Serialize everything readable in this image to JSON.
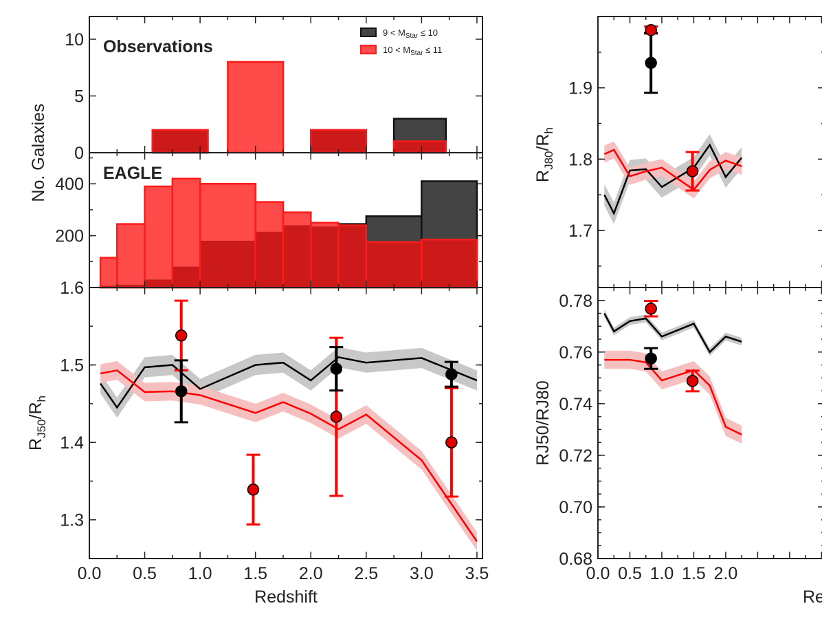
{
  "colors": {
    "black": "#000000",
    "red": "#ff0000",
    "obs_black_fill": "#444444",
    "obs_red_fill": "#ff4a4a",
    "eagle_red_dark": "#cc1a1a",
    "band_black": "#c8c8c8",
    "band_red": "#f7c0c0"
  },
  "chart_data": [
    {
      "type": "bar",
      "panel": "left-top",
      "title": "Observations",
      "ylabel": "No. Galaxies",
      "ylim": [
        0,
        12
      ],
      "yticks": [
        "0",
        "5",
        "10"
      ],
      "legend": {
        "position": "top-right",
        "entries": [
          {
            "series": "9 < M_Star ≤ 10",
            "prefix": "9 < M",
            "sub": "Star",
            "suffix": " ≤ 10"
          },
          {
            "series": "10 < M_Star ≤ 11",
            "prefix": "10 < M",
            "sub": "Star",
            "suffix": " ≤ 11"
          }
        ]
      },
      "series": [
        {
          "name": "9 < M_Star ≤ 10",
          "bins": [
            [
              0.57,
              1.07,
              2
            ],
            [
              2.0,
              2.5,
              2
            ],
            [
              2.75,
              3.22,
              3
            ]
          ]
        },
        {
          "name": "10 < M_Star ≤ 11",
          "bins": [
            [
              0.57,
              1.07,
              2
            ],
            [
              1.25,
              1.75,
              8
            ],
            [
              2.0,
              2.5,
              2
            ],
            [
              2.75,
              3.22,
              1
            ]
          ]
        }
      ]
    },
    {
      "type": "bar",
      "panel": "left-middle",
      "title": "EAGLE",
      "ylabel": "No. Galaxies",
      "ylim": [
        0,
        520
      ],
      "yticks": [
        "200",
        "400"
      ],
      "series": [
        {
          "name": "9 < M_Star ≤ 10",
          "bins": [
            [
              0.1,
              0.25,
              6
            ],
            [
              0.25,
              0.5,
              10
            ],
            [
              0.5,
              0.75,
              30
            ],
            [
              0.75,
              1.0,
              80
            ],
            [
              1.0,
              1.5,
              180
            ],
            [
              1.5,
              1.75,
              215
            ],
            [
              1.75,
              2.0,
              240
            ],
            [
              2.0,
              2.25,
              235
            ],
            [
              2.25,
              2.5,
              245
            ],
            [
              2.5,
              3.0,
              275
            ],
            [
              3.0,
              3.5,
              410
            ]
          ]
        },
        {
          "name": "10 < M_Star ≤ 11",
          "bins": [
            [
              0.1,
              0.25,
              115
            ],
            [
              0.25,
              0.5,
              245
            ],
            [
              0.5,
              0.75,
              390
            ],
            [
              0.75,
              1.0,
              420
            ],
            [
              1.0,
              1.5,
              400
            ],
            [
              1.5,
              1.75,
              330
            ],
            [
              1.75,
              2.0,
              290
            ],
            [
              2.0,
              2.25,
              250
            ],
            [
              2.25,
              2.5,
              240
            ],
            [
              2.5,
              3.0,
              175
            ],
            [
              3.0,
              3.5,
              185
            ]
          ]
        }
      ]
    },
    {
      "type": "line",
      "panel": "left-bottom",
      "xlabel": "Redshift",
      "ylabel": "R_J50/R_h",
      "ylabel_main": "R",
      "ylabel_sub": "J50",
      "ylabel_mid": "/R",
      "ylabel_sub2": "h",
      "xlim": [
        0,
        3.55
      ],
      "ylim": [
        1.25,
        1.6
      ],
      "xticks": [
        "0.0",
        "0.5",
        "1.0",
        "1.5",
        "2.0",
        "2.5",
        "3.0",
        "3.5"
      ],
      "yticks": [
        "1.3",
        "1.4",
        "1.5",
        "1.6"
      ],
      "series": [
        {
          "name": "EAGLE 9 < M_Star ≤ 10",
          "x": [
            0.1,
            0.25,
            0.5,
            0.75,
            1.0,
            1.5,
            1.75,
            2.0,
            2.25,
            2.5,
            3.0,
            3.5
          ],
          "y": [
            1.476,
            1.445,
            1.497,
            1.5,
            1.469,
            1.5,
            1.503,
            1.48,
            1.51,
            1.503,
            1.509,
            1.48
          ],
          "band": 0.013
        },
        {
          "name": "EAGLE 10 < M_Star ≤ 11",
          "x": [
            0.1,
            0.25,
            0.5,
            0.75,
            1.0,
            1.5,
            1.75,
            2.0,
            2.25,
            2.5,
            3.0,
            3.5
          ],
          "y": [
            1.489,
            1.493,
            1.465,
            1.466,
            1.461,
            1.438,
            1.452,
            1.437,
            1.417,
            1.436,
            1.377,
            1.272
          ],
          "band": 0.012
        },
        {
          "name": "Obs 9 < M_Star ≤ 10",
          "points": [
            {
              "x": 0.83,
              "y": 1.466,
              "err": 0.04
            },
            {
              "x": 2.23,
              "y": 1.495,
              "err": 0.028
            },
            {
              "x": 3.27,
              "y": 1.488,
              "err": 0.016
            }
          ]
        },
        {
          "name": "Obs 10 < M_Star ≤ 11",
          "points": [
            {
              "x": 0.83,
              "y": 1.538,
              "err": 0.045
            },
            {
              "x": 1.48,
              "y": 1.339,
              "err": 0.045
            },
            {
              "x": 2.23,
              "y": 1.433,
              "err": 0.102
            },
            {
              "x": 3.27,
              "y": 1.4,
              "err": 0.07
            }
          ]
        }
      ]
    },
    {
      "type": "line",
      "panel": "right-top",
      "ylabel": "R_J80/R_h",
      "ylabel_main": "R",
      "ylabel_sub": "J80",
      "ylabel_mid": "/R",
      "ylabel_sub2": "h",
      "xlim": [
        0,
        3.55
      ],
      "ylim": [
        1.62,
        2.0
      ],
      "yticks": [
        "1.7",
        "1.8",
        "1.9"
      ],
      "series": [
        {
          "name": "EAGLE 9 < M_Star ≤ 10",
          "x": [
            0.1,
            0.25,
            0.5,
            0.75,
            1.0,
            1.5,
            1.75,
            2.0,
            2.25
          ],
          "y": [
            1.75,
            1.724,
            1.784,
            1.786,
            1.761,
            1.788,
            1.82,
            1.775,
            1.802
          ],
          "band": 0.015
        },
        {
          "name": "EAGLE 10 < M_Star ≤ 11",
          "x": [
            0.1,
            0.25,
            0.5,
            0.75,
            1.0,
            1.5,
            1.75,
            2.0,
            2.25
          ],
          "y": [
            1.807,
            1.813,
            1.776,
            1.783,
            1.788,
            1.757,
            1.785,
            1.798,
            1.79
          ],
          "band": 0.012
        },
        {
          "name": "Obs 9 < M_Star ≤ 10",
          "points": [
            {
              "x": 0.83,
              "y": 1.935,
              "err": 0.042
            }
          ]
        },
        {
          "name": "Obs 10 < M_Star ≤ 11",
          "points": [
            {
              "x": 0.83,
              "y": 1.981,
              "err": 0.005
            },
            {
              "x": 1.48,
              "y": 1.783,
              "err": 0.027
            }
          ]
        }
      ]
    },
    {
      "type": "line",
      "panel": "right-bottom",
      "xlabel": "Redshift",
      "ylabel": "RJ50/RJ80",
      "xlim": [
        0,
        3.55
      ],
      "ylim": [
        0.68,
        0.785
      ],
      "xticks": [
        "0.0",
        "0.5",
        "1.0",
        "1.5",
        "2.0"
      ],
      "yticks": [
        "0.68",
        "0.70",
        "0.72",
        "0.74",
        "0.76",
        "0.78"
      ],
      "series": [
        {
          "name": "EAGLE 9 < M_Star ≤ 10",
          "x": [
            0.1,
            0.25,
            0.5,
            0.75,
            1.0,
            1.5,
            1.75,
            2.0,
            2.25
          ],
          "y": [
            0.775,
            0.768,
            0.772,
            0.773,
            0.766,
            0.771,
            0.76,
            0.766,
            0.764
          ],
          "band": 0.0015
        },
        {
          "name": "EAGLE 10 < M_Star ≤ 11",
          "x": [
            0.1,
            0.25,
            0.5,
            0.75,
            1.0,
            1.5,
            1.75,
            2.0,
            2.25
          ],
          "y": [
            0.757,
            0.757,
            0.757,
            0.756,
            0.749,
            0.753,
            0.747,
            0.731,
            0.728
          ],
          "band": 0.0035
        },
        {
          "name": "Obs 9 < M_Star ≤ 10",
          "points": [
            {
              "x": 0.83,
              "y": 0.7575,
              "err": 0.004
            }
          ]
        },
        {
          "name": "Obs 10 < M_Star ≤ 11",
          "points": [
            {
              "x": 0.83,
              "y": 0.7768,
              "err": 0.003
            },
            {
              "x": 1.48,
              "y": 0.7488,
              "err": 0.004
            }
          ]
        }
      ]
    }
  ]
}
